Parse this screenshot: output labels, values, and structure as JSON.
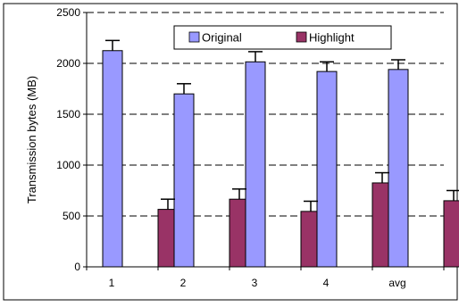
{
  "chart_data": {
    "type": "bar",
    "title": "",
    "xlabel": "",
    "ylabel": "Transmission bytes (MB)",
    "categories": [
      "1",
      "2",
      "3",
      "4",
      "avg"
    ],
    "ylim": [
      0,
      2500
    ],
    "yticks": [
      0,
      500,
      1000,
      1500,
      2000,
      2500
    ],
    "grid": true,
    "legend_position": "top-right",
    "error_bars": true,
    "series": [
      {
        "name": "Original",
        "color": "#9999ff",
        "values": [
          2125,
          1700,
          2015,
          1920,
          1940
        ],
        "errors": [
          100,
          100,
          100,
          95,
          95
        ]
      },
      {
        "name": "Highlight",
        "color": "#993366",
        "values": [
          565,
          665,
          545,
          825,
          650
        ],
        "errors": [
          100,
          100,
          100,
          100,
          100
        ]
      }
    ]
  }
}
